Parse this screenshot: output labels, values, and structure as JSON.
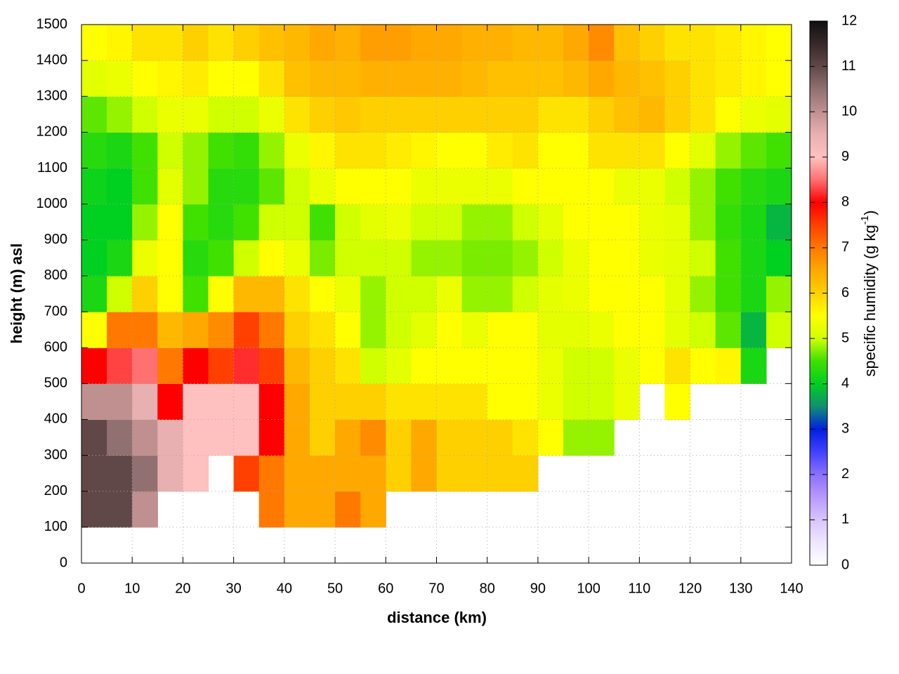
{
  "chart_data": {
    "type": "heatmap",
    "xlabel": "distance (km)",
    "ylabel": "height (m) asl",
    "cblabel": [
      "specific humidity (g kg",
      "-1",
      ")"
    ],
    "xlim": [
      0,
      140
    ],
    "xticks": [
      0,
      10,
      20,
      30,
      40,
      50,
      60,
      70,
      80,
      90,
      100,
      110,
      120,
      130,
      140
    ],
    "ylim": [
      0,
      1500
    ],
    "yticks": [
      0,
      100,
      200,
      300,
      400,
      500,
      600,
      700,
      800,
      900,
      1000,
      1100,
      1200,
      1300,
      1400,
      1500
    ],
    "zlim": [
      0,
      12
    ],
    "zticks": [
      0,
      1,
      2,
      3,
      4,
      5,
      6,
      7,
      8,
      9,
      10,
      11,
      12
    ],
    "grid": true,
    "palette": [
      "#ffffff",
      "#eee6ff",
      "#d8c4ff",
      "#b898ff",
      "#8a70ff",
      "#4040ff",
      "#0020e0",
      "#109070",
      "#00d020",
      "#40e000",
      "#d0ff00",
      "#ffff00",
      "#ffd000",
      "#ffa800",
      "#ff7800",
      "#ff4000",
      "#ff0000",
      "#ff7070",
      "#ffc0c0",
      "#e8b0b0",
      "#c09090",
      "#907070",
      "#604848",
      "#382828",
      "#101010"
    ],
    "x": [
      2.5,
      7.5,
      12.5,
      17.5,
      22.5,
      27.5,
      32.5,
      37.5,
      42.5,
      47.5,
      52.5,
      57.5,
      62.5,
      67.5,
      72.5,
      77.5,
      82.5,
      87.5,
      92.5,
      97.5,
      102.5,
      107.5,
      112.5,
      117.5,
      122.5,
      127.5,
      132.5,
      137.5
    ],
    "y": [
      50,
      150,
      250,
      350,
      450,
      550,
      650,
      750,
      850,
      950,
      1050,
      1150,
      1250,
      1350,
      1450
    ],
    "z": [
      [
        null,
        null,
        null,
        null,
        null,
        null,
        null,
        null,
        null,
        null,
        null,
        null,
        null,
        null,
        null,
        null,
        null,
        null,
        null,
        null,
        null,
        null,
        null,
        null,
        null,
        null,
        null,
        null
      ],
      [
        11,
        11,
        10,
        null,
        null,
        null,
        null,
        7,
        6.5,
        6.5,
        7,
        6.5,
        null,
        null,
        null,
        null,
        null,
        null,
        null,
        null,
        null,
        null,
        null,
        null,
        null,
        null,
        null,
        null
      ],
      [
        11,
        11,
        10.5,
        9.5,
        9,
        null,
        7.5,
        7,
        6.5,
        6.5,
        6.5,
        6.5,
        6,
        6.5,
        6,
        6,
        6,
        6,
        null,
        null,
        null,
        null,
        null,
        null,
        null,
        null,
        null,
        null
      ],
      [
        11,
        10.5,
        10,
        9.5,
        9,
        9,
        9,
        8,
        6.5,
        6,
        6.5,
        6.8,
        6,
        6.5,
        6,
        6,
        6,
        5.8,
        5.5,
        4.8,
        4.8,
        null,
        null,
        null,
        null,
        null,
        null,
        null
      ],
      [
        10,
        10,
        9.5,
        8,
        9,
        9,
        9,
        8,
        6.5,
        6,
        6,
        6,
        5.8,
        5.8,
        5.8,
        5.8,
        5.5,
        5.5,
        5.3,
        5,
        5,
        5.3,
        null,
        5.5,
        null,
        null,
        null,
        null
      ],
      [
        8,
        8.3,
        8.5,
        7,
        8,
        7.5,
        8.2,
        7.5,
        6.3,
        6,
        5.8,
        5,
        5.2,
        5.5,
        5.5,
        5.5,
        5.5,
        5.5,
        5.3,
        5,
        5,
        5.3,
        5.5,
        5.8,
        5.5,
        5.6,
        4.2,
        null
      ],
      [
        5.5,
        7,
        7,
        6.3,
        6.5,
        6.8,
        7.5,
        7,
        6,
        5.8,
        5.5,
        4.8,
        5,
        5.2,
        5.5,
        5.3,
        5.5,
        5.5,
        5.2,
        5.2,
        5.3,
        5.5,
        5.5,
        5.2,
        5,
        4.6,
        3.8,
        5
      ],
      [
        4.2,
        5,
        6,
        5.5,
        4.5,
        5.5,
        6.3,
        6.3,
        5.8,
        5.5,
        5.3,
        4.8,
        5,
        5,
        5.3,
        4.8,
        4.8,
        5,
        5.2,
        5.3,
        5.5,
        5.5,
        5.5,
        5.2,
        4.8,
        4.5,
        4.2,
        4.8
      ],
      [
        4,
        4.2,
        5.3,
        5.5,
        4.3,
        4.5,
        5,
        5.5,
        5.3,
        4.7,
        5,
        5,
        5,
        4.8,
        4.8,
        4.7,
        4.7,
        4.8,
        5,
        5.3,
        5.5,
        5.5,
        5.3,
        5.2,
        5,
        4.5,
        4.2,
        4
      ],
      [
        4,
        4,
        4.8,
        5.5,
        4.5,
        4.3,
        4.5,
        5,
        5,
        4.5,
        5,
        5.2,
        5.3,
        5,
        5,
        4.8,
        4.8,
        5,
        5.2,
        5.5,
        5.5,
        5.5,
        5.3,
        5.2,
        4.8,
        4.4,
        4.2,
        3.8
      ],
      [
        4.1,
        4,
        4.5,
        5.2,
        4.8,
        4.3,
        4.3,
        4.6,
        5,
        5.3,
        5.5,
        5.5,
        5.5,
        5.3,
        5.3,
        5.3,
        5.3,
        5.5,
        5.5,
        5.5,
        5.5,
        5.3,
        5.3,
        5,
        4.8,
        4.5,
        4.3,
        4.2
      ],
      [
        4.3,
        4.2,
        4.5,
        5,
        4.8,
        4.5,
        4.4,
        4.8,
        5.3,
        5.6,
        5.8,
        5.8,
        5.7,
        5.6,
        5.5,
        5.5,
        5.7,
        5.8,
        5.5,
        5.5,
        5.8,
        5.8,
        5.8,
        5.5,
        5.2,
        4.8,
        4.6,
        4.5
      ],
      [
        4.6,
        4.8,
        5,
        5.3,
        5.3,
        5,
        5,
        5.3,
        5.8,
        6,
        6.1,
        6,
        6,
        6,
        6,
        6,
        6,
        6,
        5.8,
        5.8,
        6,
        6.2,
        6.3,
        6,
        5.8,
        5.5,
        5.3,
        5.2
      ],
      [
        5.2,
        5.3,
        5.5,
        5.6,
        5.7,
        5.5,
        5.5,
        5.8,
        6.2,
        6.3,
        6.3,
        6.4,
        6.4,
        6.4,
        6.4,
        6.3,
        6.2,
        6.2,
        6.2,
        6.3,
        6.5,
        6.3,
        6.2,
        6,
        5.8,
        5.7,
        5.6,
        5.5
      ],
      [
        5.5,
        5.6,
        5.8,
        5.8,
        6,
        5.8,
        6,
        6.2,
        6.3,
        6.5,
        6.4,
        6.6,
        6.6,
        6.5,
        6.5,
        6.4,
        6.4,
        6.3,
        6.3,
        6.5,
        6.8,
        6.2,
        6,
        5.8,
        5.8,
        5.7,
        5.6,
        5.5
      ]
    ]
  }
}
